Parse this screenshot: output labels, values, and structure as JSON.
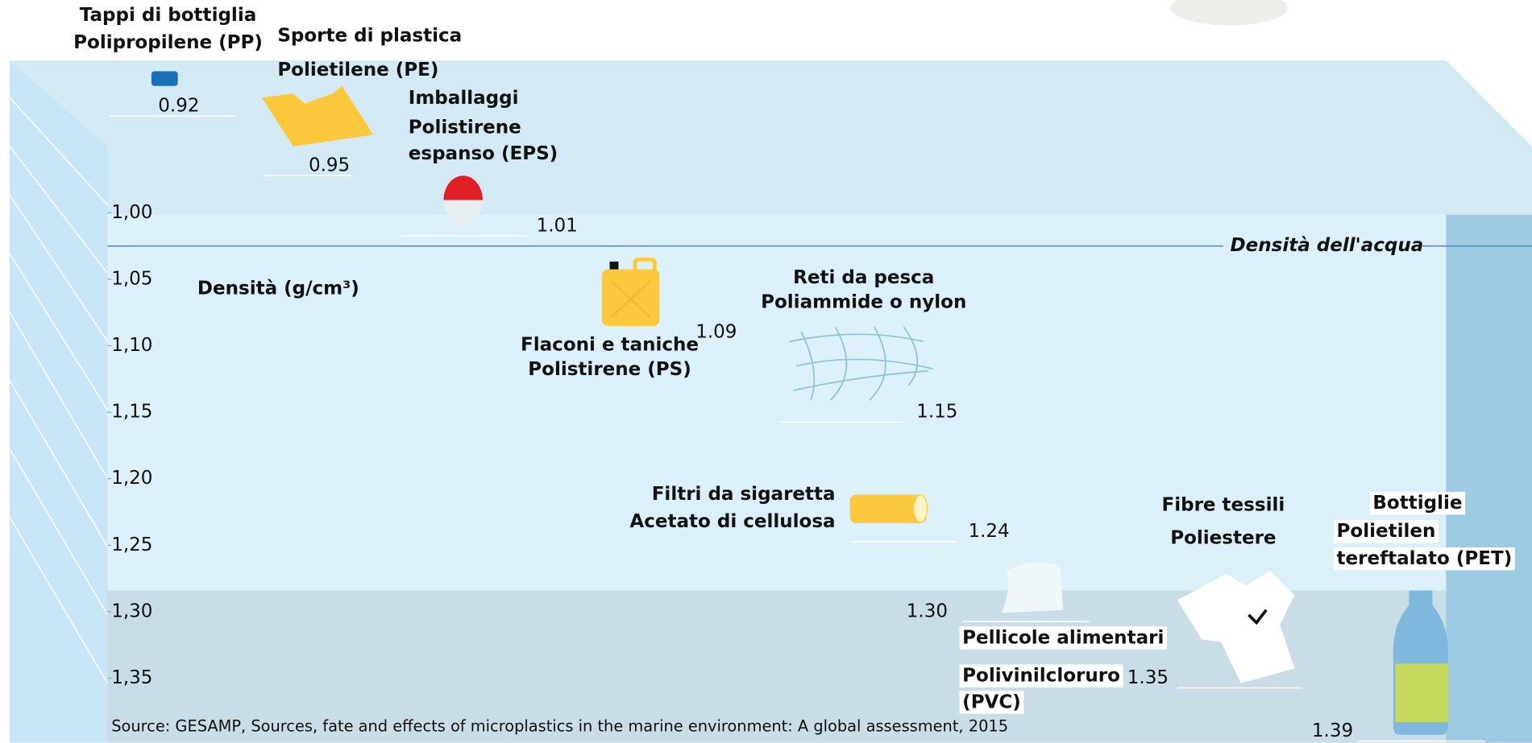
{
  "chart_data": {
    "type": "density",
    "y_label": "Densità (g/cm³)",
    "ylim": [
      0.84,
      1.4
    ],
    "yticks": [
      {
        "value": 1.0,
        "label": "1,00"
      },
      {
        "value": 1.05,
        "label": "1,05"
      },
      {
        "value": 1.1,
        "label": "1,10"
      },
      {
        "value": 1.15,
        "label": "1,15"
      },
      {
        "value": 1.2,
        "label": "1,20"
      },
      {
        "value": 1.25,
        "label": "1,25"
      },
      {
        "value": 1.3,
        "label": "1,30"
      },
      {
        "value": 1.35,
        "label": "1,35"
      }
    ],
    "reference_line": {
      "value": 1.025,
      "label": "Densità dell'acqua"
    },
    "categories": [
      "Tappi di bottiglia",
      "Sporte di plastica",
      "Imballaggi",
      "Flaconi e taniche",
      "Reti da pesca",
      "Filtri da sigaretta",
      "Pellicole alimentari",
      "Fibre tessili",
      "Bottiglie"
    ],
    "materials": [
      [
        "Polipropilene (PP)"
      ],
      [
        "Polietilene (PE)"
      ],
      [
        "Polistirene",
        "espanso (EPS)"
      ],
      [
        "Polistirene (PS)"
      ],
      [
        "Poliammide o nylon"
      ],
      [
        "Acetato di cellulosa"
      ],
      [
        "Polivinilcloruro",
        "(PVC)"
      ],
      [
        "Poliestere"
      ],
      [
        "Polietilen",
        "tereftalato (PET)"
      ]
    ],
    "values": [
      0.92,
      0.95,
      1.01,
      1.09,
      1.15,
      1.24,
      1.3,
      1.35,
      1.39
    ],
    "value_labels": [
      "0.92",
      "0.95",
      "1.01",
      "1.09",
      "1.15",
      "1.24",
      "1.30",
      "1.35",
      "1.39"
    ],
    "source": "Source: GESAMP, Sources, fate and effects of microplastics in the marine environment: A global assessment, 2015"
  }
}
